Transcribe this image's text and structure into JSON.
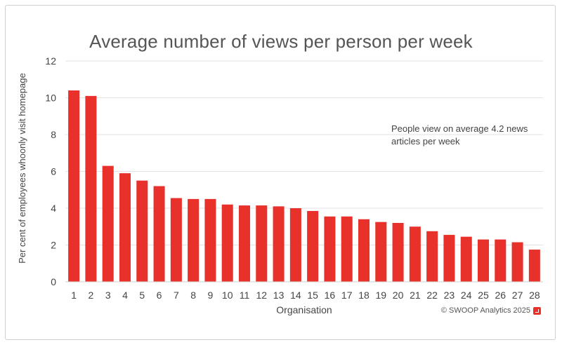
{
  "chart_data": {
    "type": "bar",
    "title": "Average number of views per person per week",
    "xlabel": "Organisation",
    "ylabel": "Per cent of employees whoonly visit homepage",
    "ylim": [
      0,
      12
    ],
    "yticks": [
      0,
      2,
      4,
      6,
      8,
      10,
      12
    ],
    "grid": true,
    "categories": [
      "1",
      "2",
      "3",
      "4",
      "5",
      "6",
      "7",
      "8",
      "9",
      "10",
      "11",
      "12",
      "13",
      "14",
      "15",
      "16",
      "17",
      "18",
      "19",
      "20",
      "21",
      "22",
      "23",
      "24",
      "25",
      "26",
      "27",
      "28"
    ],
    "values": [
      10.4,
      10.1,
      6.3,
      5.9,
      5.5,
      5.2,
      4.55,
      4.5,
      4.5,
      4.2,
      4.15,
      4.15,
      4.1,
      4.0,
      3.85,
      3.55,
      3.55,
      3.4,
      3.25,
      3.2,
      3.0,
      2.75,
      2.55,
      2.45,
      2.3,
      2.3,
      2.15,
      1.75
    ],
    "bar_color": "#e8312a",
    "annotation": "People view on average 4.2 news articles per week"
  },
  "footer": {
    "copyright": "© SWOOP Analytics 2025",
    "logo_icon": "swoop-logo-icon"
  }
}
